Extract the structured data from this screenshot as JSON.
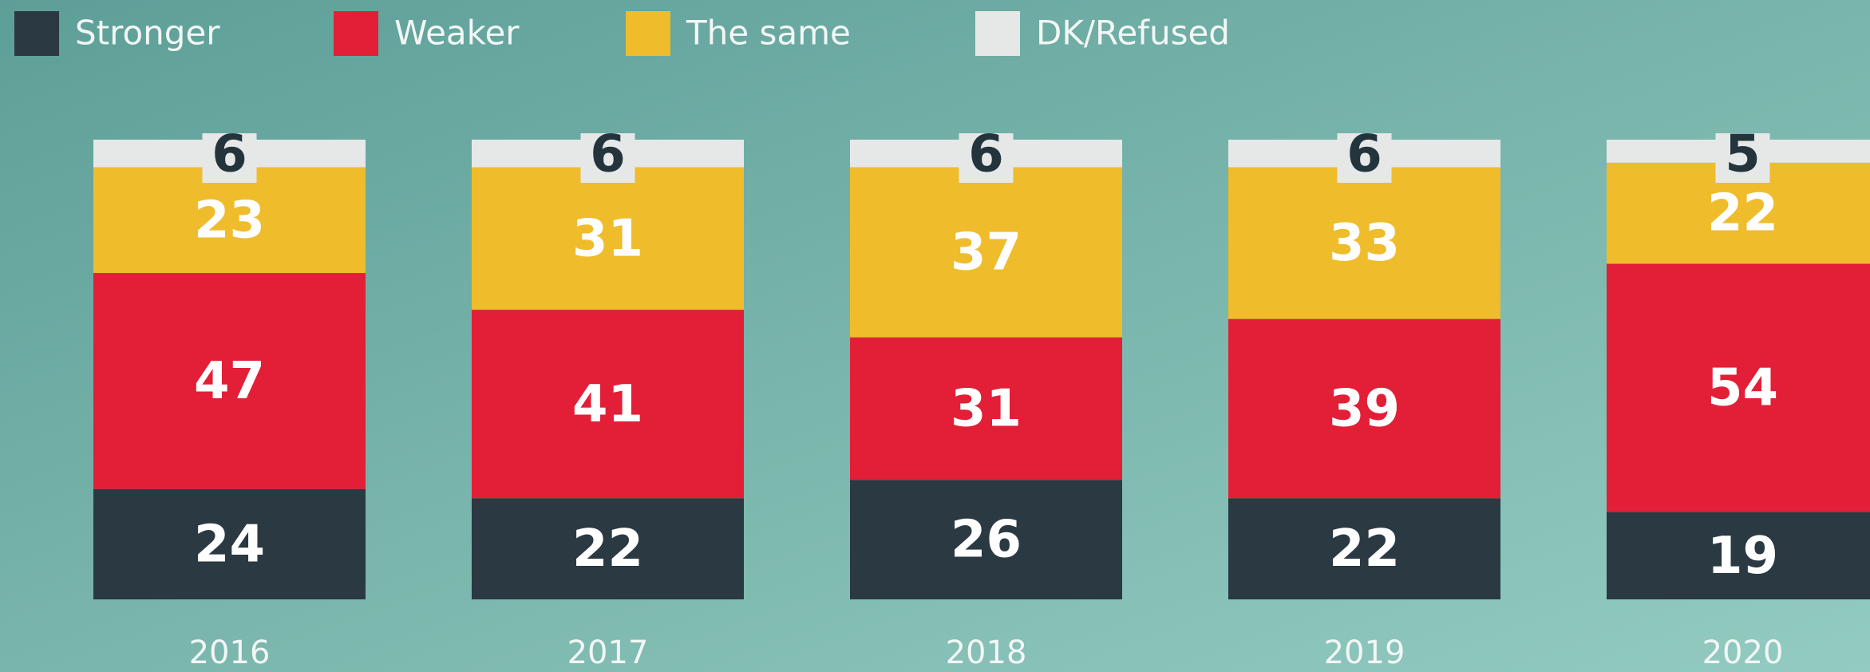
{
  "chart_data": {
    "type": "stacked-bar",
    "categories": [
      "2016",
      "2017",
      "2018",
      "2019",
      "2020"
    ],
    "series": [
      {
        "name": "Stronger",
        "color": "#2a3942",
        "values": [
          24,
          22,
          26,
          22,
          19
        ]
      },
      {
        "name": "Weaker",
        "color": "#e21f36",
        "values": [
          47,
          41,
          31,
          39,
          54
        ]
      },
      {
        "name": "The same",
        "color": "#efbc2c",
        "values": [
          23,
          31,
          37,
          33,
          22
        ]
      },
      {
        "name": "DK/Refused",
        "color": "#e6e8e8",
        "values": [
          6,
          6,
          6,
          6,
          5
        ]
      }
    ],
    "legend": "top-left"
  }
}
